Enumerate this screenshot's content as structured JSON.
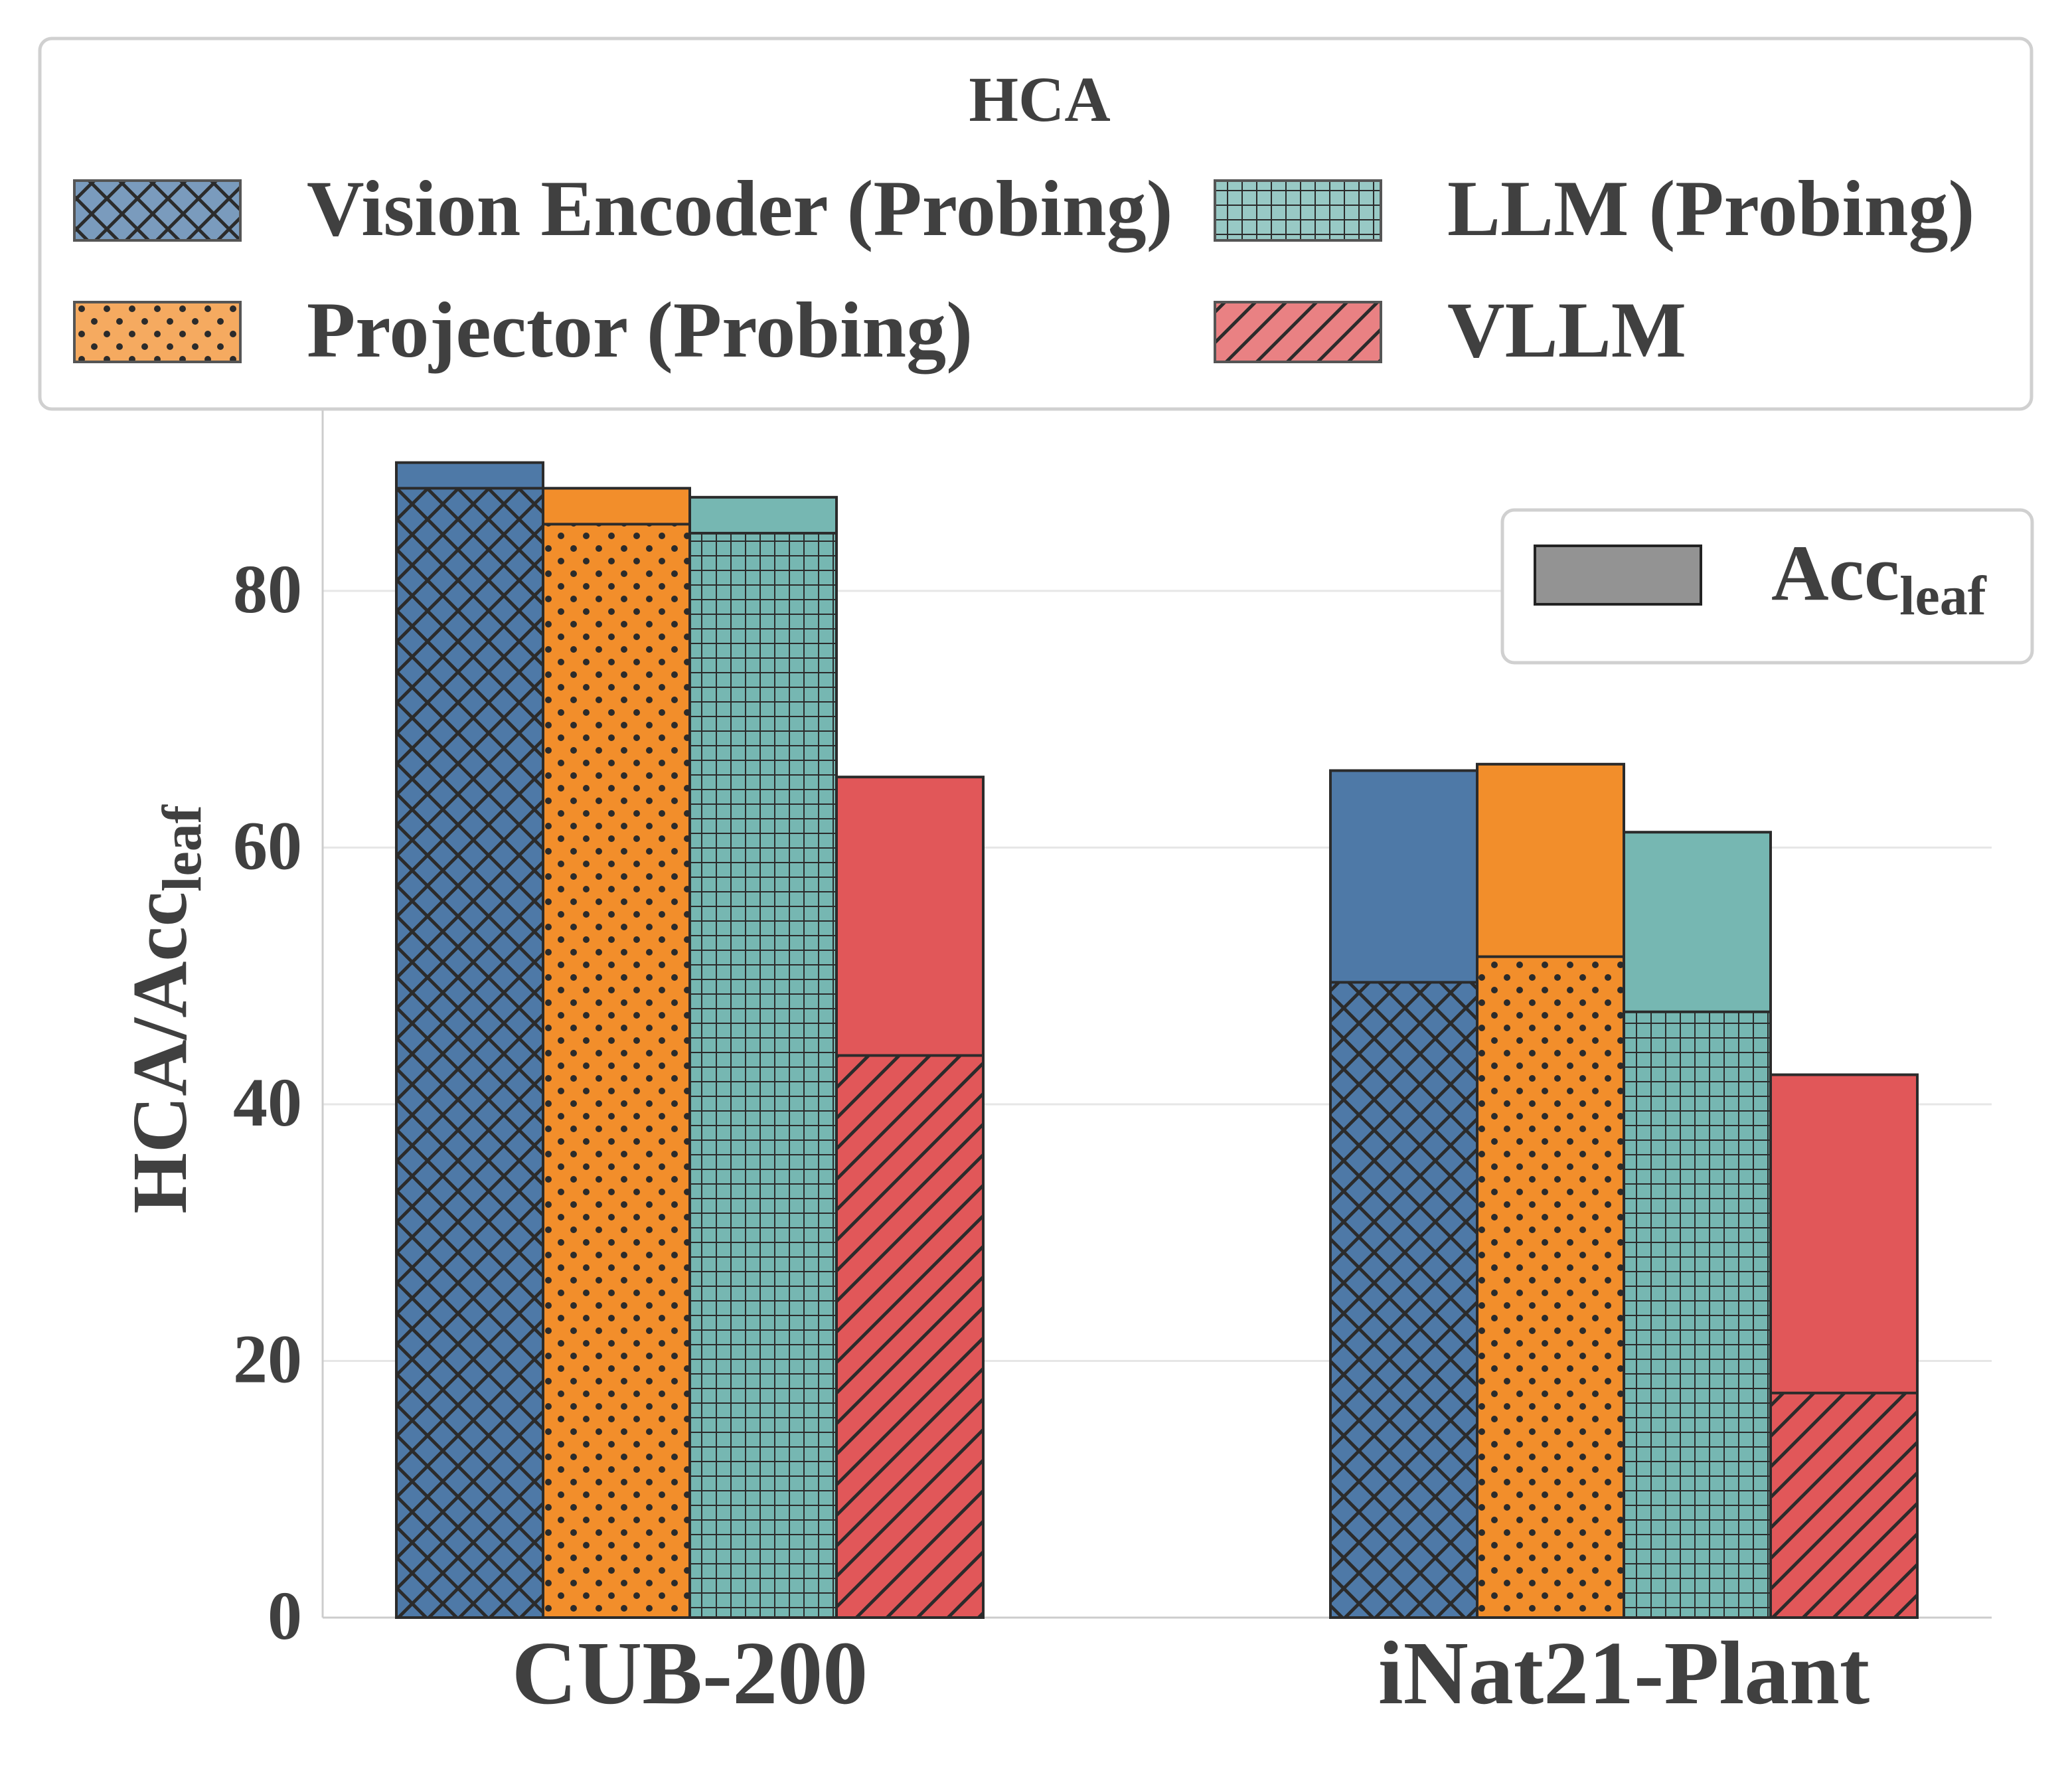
{
  "chart_data": {
    "type": "bar",
    "title": "",
    "xlabel": "",
    "ylabel": {
      "main": "HCA/Acc",
      "sub": "leaf"
    },
    "categories": [
      "CUB-200",
      "iNat21-Plant"
    ],
    "ylim": [
      0,
      95
    ],
    "yticks": [
      0,
      20,
      40,
      60,
      80
    ],
    "grid": true,
    "series": [
      {
        "name": "Vision Encoder (Probing)",
        "color": "#4e79a7",
        "pattern": "crosshatch",
        "hca": [
          88.0,
          49.5
        ],
        "acc_leaf": [
          90.0,
          66.0
        ]
      },
      {
        "name": "Projector (Probing)",
        "color": "#f28e2b",
        "pattern": "dots",
        "hca": [
          85.2,
          51.5
        ],
        "acc_leaf": [
          88.0,
          66.5
        ]
      },
      {
        "name": "LLM (Probing)",
        "color": "#76b7b2",
        "pattern": "grid",
        "hca": [
          84.5,
          47.2
        ],
        "acc_leaf": [
          87.3,
          61.2
        ]
      },
      {
        "name": "VLLM",
        "color": "#e15759",
        "pattern": "diagonal",
        "hca": [
          43.8,
          17.5
        ],
        "acc_leaf": [
          65.5,
          42.3
        ]
      }
    ],
    "legend_hca": {
      "title": "HCA",
      "placement": "top",
      "entries": [
        "Vision Encoder (Probing)",
        "LLM (Probing)",
        "Projector (Probing)",
        "VLLM"
      ]
    },
    "legend_acc": {
      "label_main": "Acc",
      "label_sub": "leaf",
      "placement": "upper-right",
      "color": "#939393"
    }
  }
}
